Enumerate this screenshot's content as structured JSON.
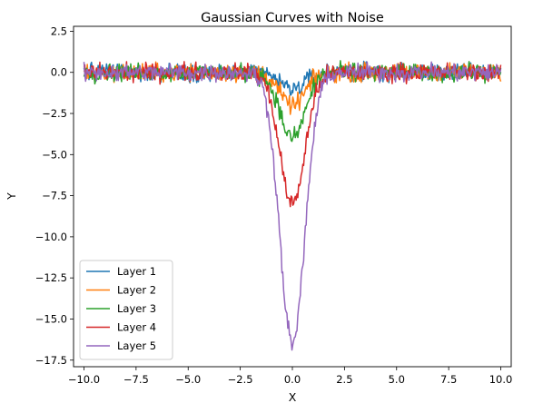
{
  "chart_data": {
    "type": "line",
    "title": "Gaussian Curves with Noise",
    "xlabel": "X",
    "ylabel": "Y",
    "xlim": [
      -10.5,
      10.5
    ],
    "ylim": [
      -17.9,
      2.8
    ],
    "x_ticks": [
      -10.0,
      -7.5,
      -5.0,
      -2.5,
      0.0,
      2.5,
      5.0,
      7.5,
      10.0
    ],
    "x_tick_labels": [
      "−10.0",
      "−7.5",
      "−5.0",
      "−2.5",
      "0.0",
      "2.5",
      "5.0",
      "7.5",
      "10.0"
    ],
    "y_ticks": [
      2.5,
      0.0,
      -2.5,
      -5.0,
      -7.5,
      -10.0,
      -12.5,
      -15.0,
      -17.5
    ],
    "y_tick_labels": [
      "2.5",
      "0.0",
      "−2.5",
      "−5.0",
      "−7.5",
      "−10.0",
      "−12.5",
      "−15.0",
      "−17.5"
    ],
    "grid": false,
    "legend_position": "lower-left",
    "x_range": [
      -10,
      10
    ],
    "num_points": 500,
    "gaussian_sigma": 0.6,
    "noise_amplitude": 0.5,
    "series": [
      {
        "name": "Layer 1",
        "color": "#1f77b4",
        "peak_value": -1.0
      },
      {
        "name": "Layer 2",
        "color": "#ff7f0e",
        "peak_value": -2.0
      },
      {
        "name": "Layer 3",
        "color": "#2ca02c",
        "peak_value": -4.0
      },
      {
        "name": "Layer 4",
        "color": "#d62728",
        "peak_value": -8.0
      },
      {
        "name": "Layer 5",
        "color": "#9467bd",
        "peak_value": -16.5
      }
    ]
  }
}
